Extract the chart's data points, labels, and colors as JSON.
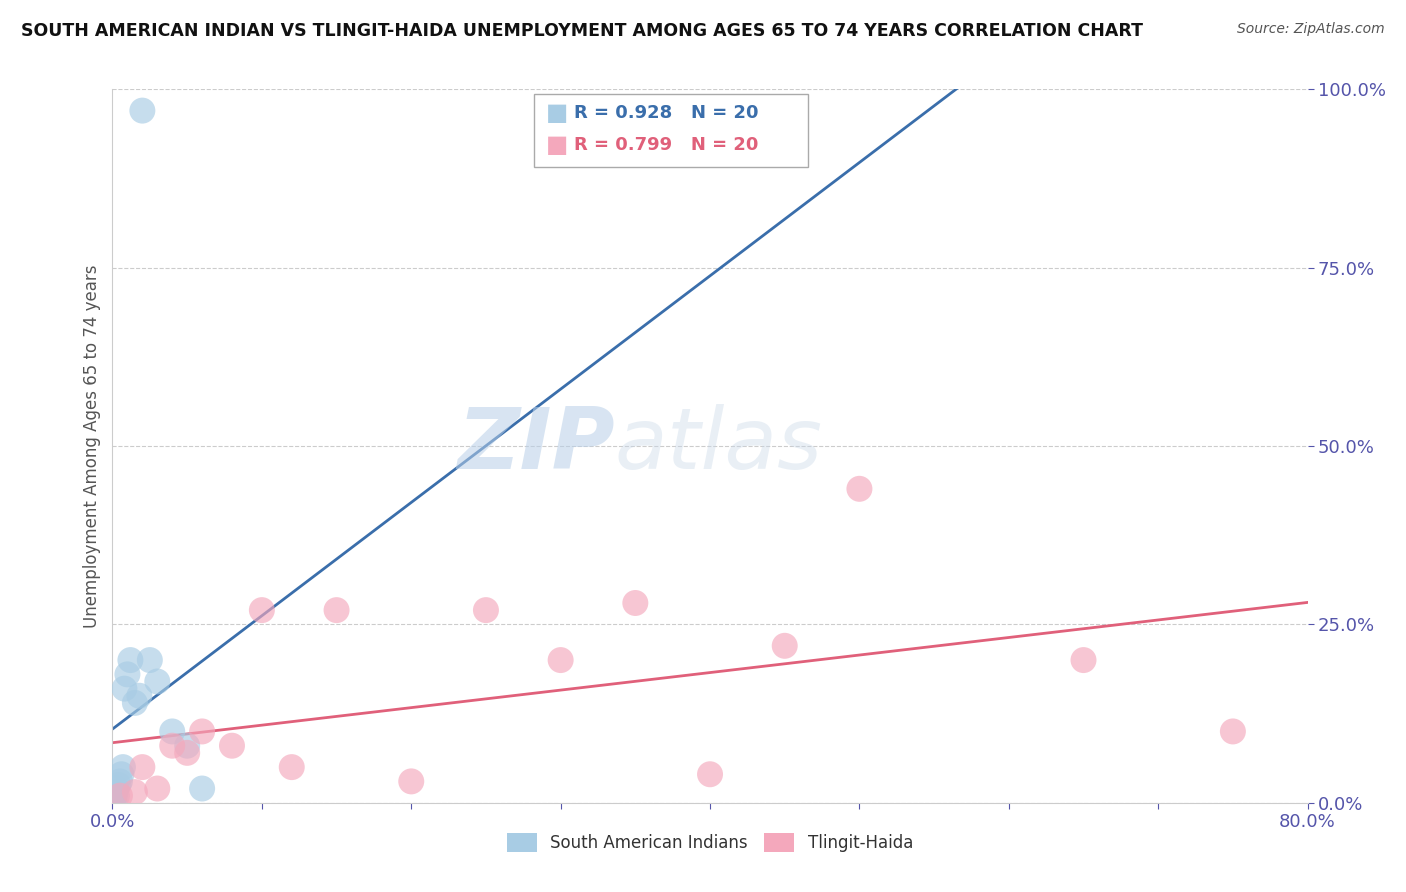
{
  "title": "SOUTH AMERICAN INDIAN VS TLINGIT-HAIDA UNEMPLOYMENT AMONG AGES 65 TO 74 YEARS CORRELATION CHART",
  "source": "Source: ZipAtlas.com",
  "ylabel": "Unemployment Among Ages 65 to 74 years",
  "watermark_zip": "ZIP",
  "watermark_atlas": "atlas",
  "blue_label": "South American Indians",
  "pink_label": "Tlingit-Haida",
  "blue_R": "R = 0.928",
  "blue_N": "N = 20",
  "pink_R": "R = 0.799",
  "pink_N": "N = 20",
  "blue_color": "#a8cce4",
  "pink_color": "#f4a8bc",
  "blue_line_color": "#3a6eab",
  "pink_line_color": "#e0607a",
  "blue_scatter_x": [
    0.1,
    0.15,
    0.2,
    0.25,
    0.3,
    0.4,
    0.5,
    0.6,
    0.7,
    0.8,
    1.0,
    1.2,
    1.5,
    2.0,
    2.5,
    3.0,
    4.0,
    5.0,
    6.0,
    1.8
  ],
  "blue_scatter_y": [
    0.5,
    1.0,
    1.5,
    2.0,
    1.0,
    2.5,
    3.0,
    4.0,
    5.0,
    16.0,
    18.0,
    20.0,
    14.0,
    97.0,
    20.0,
    17.0,
    10.0,
    8.0,
    2.0,
    15.0
  ],
  "pink_scatter_x": [
    0.5,
    1.5,
    2.0,
    3.0,
    4.0,
    5.0,
    6.0,
    8.0,
    10.0,
    12.0,
    15.0,
    20.0,
    25.0,
    30.0,
    35.0,
    40.0,
    45.0,
    50.0,
    65.0,
    75.0
  ],
  "pink_scatter_y": [
    1.0,
    1.5,
    5.0,
    2.0,
    8.0,
    7.0,
    10.0,
    8.0,
    27.0,
    5.0,
    27.0,
    3.0,
    27.0,
    20.0,
    28.0,
    4.0,
    22.0,
    44.0,
    20.0,
    10.0
  ],
  "xlim": [
    0,
    80
  ],
  "ylim": [
    0,
    100
  ],
  "background_color": "#ffffff",
  "grid_color": "#cccccc",
  "tick_color": "#5555aa",
  "label_color": "#555555"
}
